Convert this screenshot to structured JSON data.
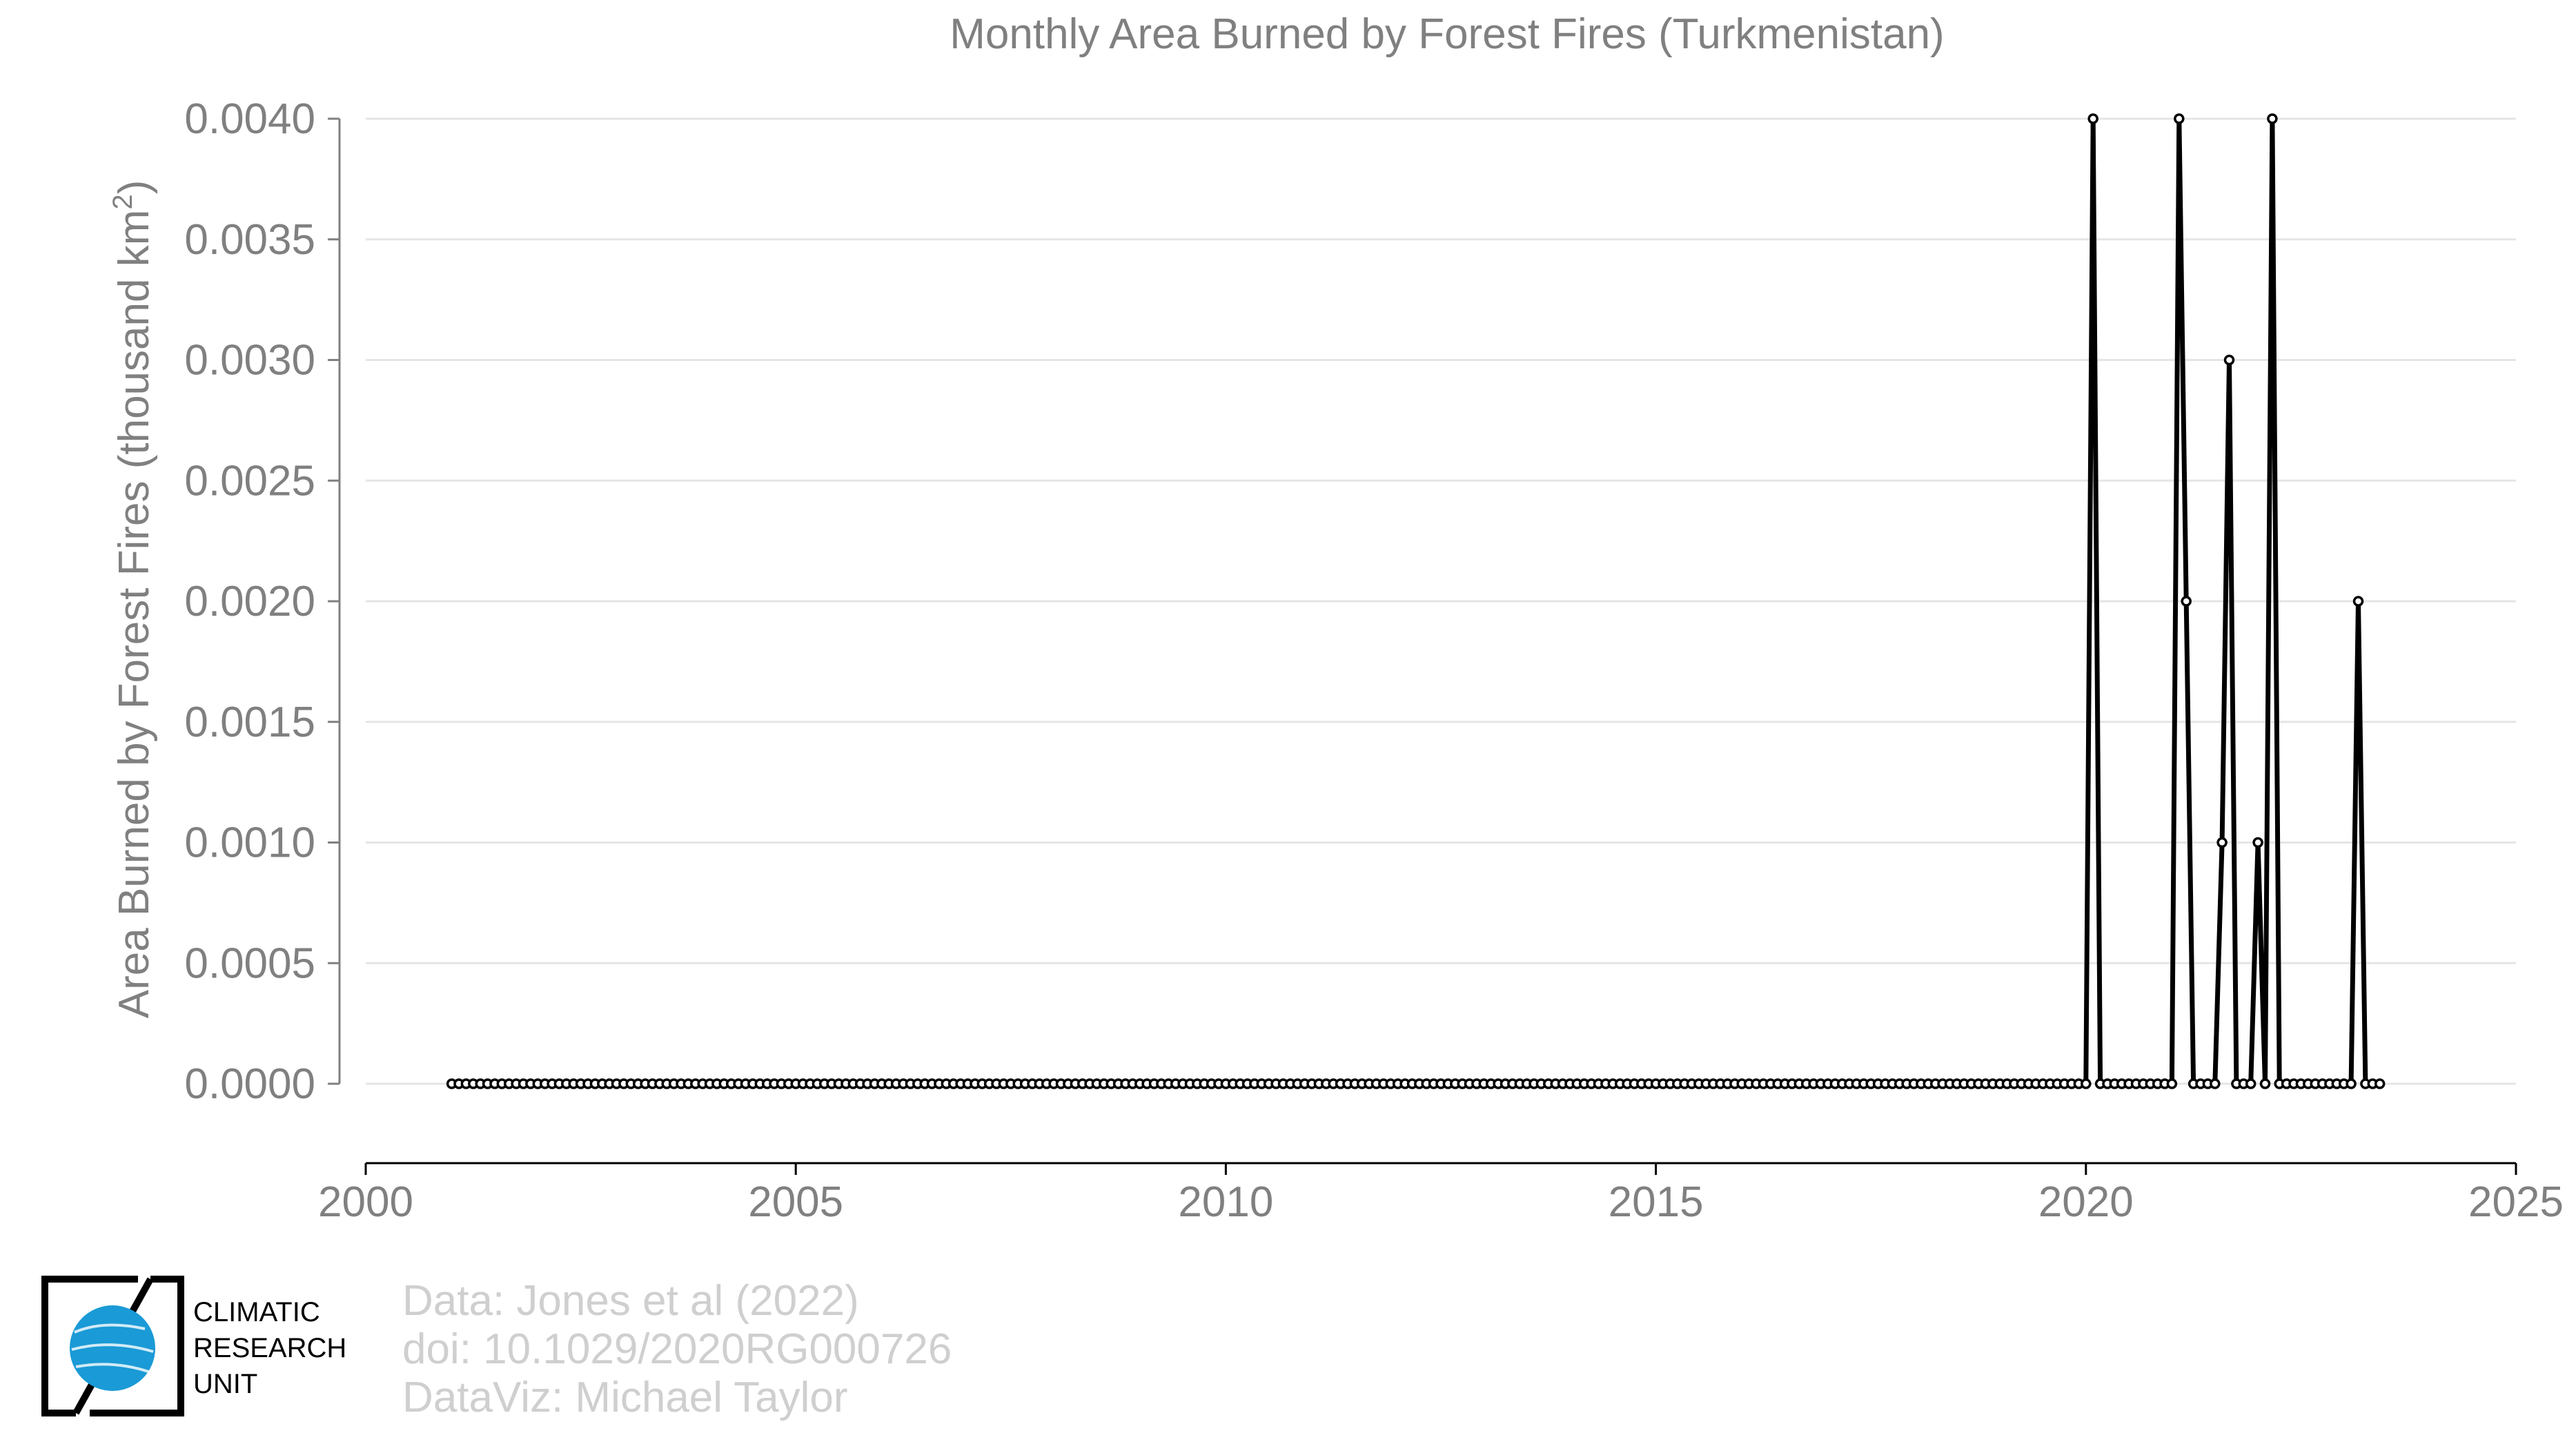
{
  "chart_data": {
    "type": "line",
    "title": "Monthly Area Burned by Forest Fires (Turkmenistan)",
    "xlabel": "",
    "ylabel_main": "Area Burned by Forest Fires (thousand km",
    "ylabel_sup": "2",
    "ylabel_end": ")",
    "xlim": [
      2000,
      2025
    ],
    "ylim": [
      0,
      0.004
    ],
    "xticks": [
      2000,
      2005,
      2010,
      2015,
      2020,
      2025
    ],
    "xtick_labels": [
      "2000",
      "2005",
      "2010",
      "2015",
      "2020",
      "2025"
    ],
    "yticks": [
      0,
      0.0005,
      0.001,
      0.0015,
      0.002,
      0.0025,
      0.003,
      0.0035,
      0.004
    ],
    "ytick_labels": [
      "0.0000",
      "0.0005",
      "0.0010",
      "0.0015",
      "0.0020",
      "0.0025",
      "0.0030",
      "0.0035",
      "0.0040"
    ],
    "grid": "horizontal",
    "series": [
      {
        "start": "2001-01",
        "end": "2023-06",
        "frequency": "monthly",
        "baseline_value": 0,
        "nonzero": [
          {
            "date": "2020-02",
            "value": 0.004
          },
          {
            "date": "2021-02",
            "value": 0.004
          },
          {
            "date": "2021-03",
            "value": 0.002
          },
          {
            "date": "2021-08",
            "value": 0.001
          },
          {
            "date": "2021-09",
            "value": 0.003
          },
          {
            "date": "2022-01",
            "value": 0.001
          },
          {
            "date": "2022-03",
            "value": 0.004
          },
          {
            "date": "2023-03",
            "value": 0.002
          }
        ]
      }
    ]
  },
  "credits": {
    "line1": "Data: Jones et al (2022)",
    "line2": "doi: 10.1029/2020RG000726",
    "line3": "DataViz: Michael Taylor"
  },
  "logo": {
    "line1": "CLIMATIC",
    "line2": "RESEARCH",
    "line3": "UNIT"
  },
  "colors": {
    "line": "#000000",
    "text": "#808080",
    "grid": "#e5e5e5",
    "credit": "#cfcfcf",
    "globe": "#1a9ad6"
  }
}
